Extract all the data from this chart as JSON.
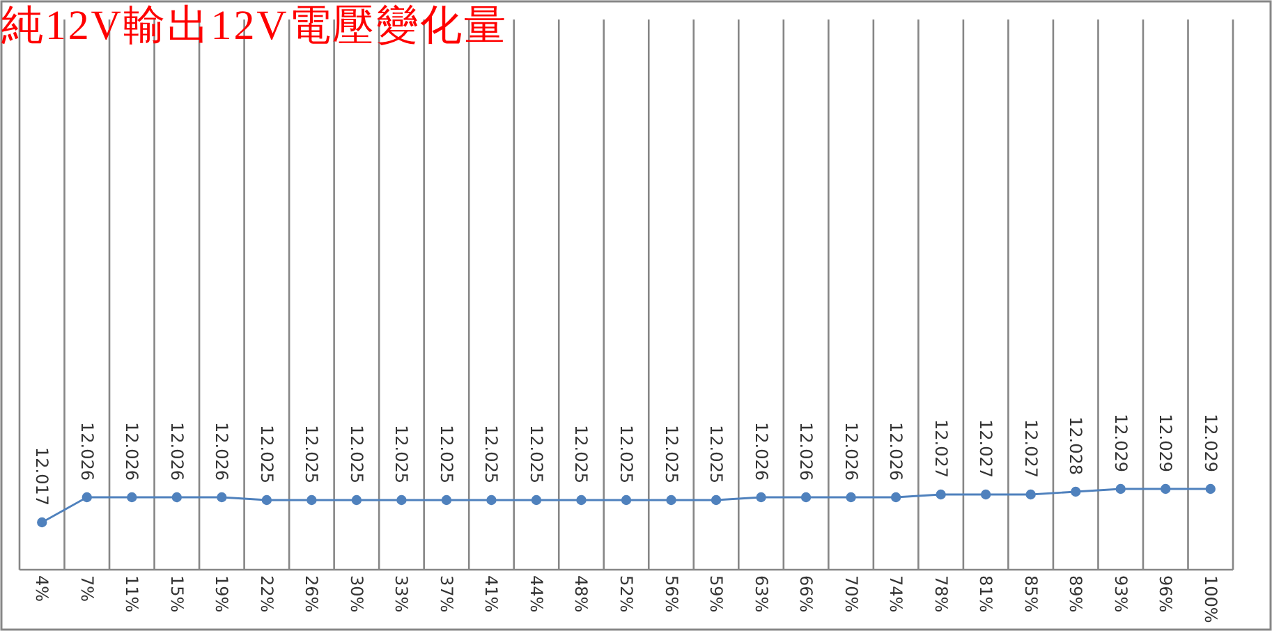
{
  "chart_data": {
    "type": "line",
    "title": "純12V輸出12V電壓變化量",
    "categories": [
      "4%",
      "7%",
      "11%",
      "15%",
      "19%",
      "22%",
      "26%",
      "30%",
      "33%",
      "37%",
      "41%",
      "44%",
      "48%",
      "52%",
      "56%",
      "59%",
      "63%",
      "66%",
      "70%",
      "74%",
      "78%",
      "81%",
      "85%",
      "89%",
      "93%",
      "96%",
      "100%"
    ],
    "series": [
      {
        "color": "#4f81bd",
        "values": [
          12.017,
          12.026,
          12.026,
          12.026,
          12.026,
          12.025,
          12.025,
          12.025,
          12.025,
          12.025,
          12.025,
          12.025,
          12.025,
          12.025,
          12.025,
          12.025,
          12.026,
          12.026,
          12.026,
          12.026,
          12.027,
          12.027,
          12.027,
          12.028,
          12.029,
          12.029,
          12.029
        ]
      }
    ],
    "data_labels": true,
    "grid": "x",
    "marker": "circle",
    "line_style": "solid",
    "tick_labels": "x"
  }
}
